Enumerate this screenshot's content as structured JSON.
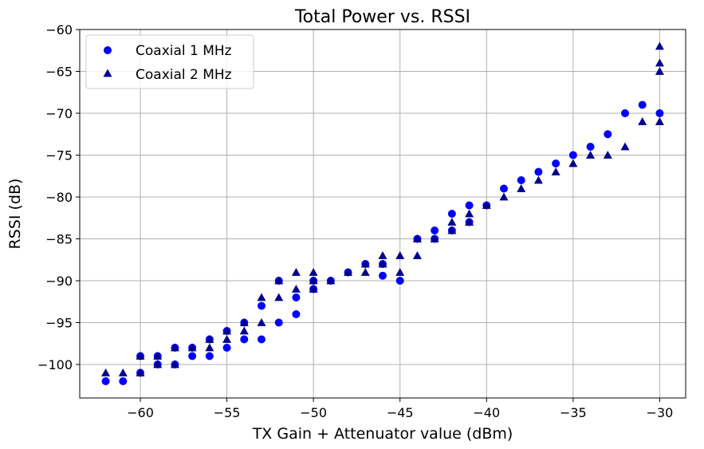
{
  "chart_data": {
    "type": "scatter",
    "title": "Total Power vs. RSSI",
    "xlabel": "TX Gain + Attenuator value (dBm)",
    "ylabel": "RSSI (dB)",
    "xlim": [
      -63.5,
      -28.5
    ],
    "ylim": [
      -104,
      -60
    ],
    "xticks": [
      -60,
      -55,
      -50,
      -45,
      -40,
      -35,
      -30
    ],
    "yticks": [
      -60,
      -65,
      -70,
      -75,
      -80,
      -85,
      -90,
      -95,
      -100
    ],
    "grid": true,
    "legend_position": "top-left",
    "series": [
      {
        "name": "Coaxial 1 MHz",
        "marker": "circle",
        "color": "#0000ff",
        "points": [
          [
            -62,
            -102
          ],
          [
            -61,
            -102
          ],
          [
            -60,
            -99
          ],
          [
            -60,
            -101
          ],
          [
            -59,
            -99
          ],
          [
            -59,
            -100
          ],
          [
            -58,
            -98
          ],
          [
            -58,
            -100
          ],
          [
            -57,
            -98
          ],
          [
            -57,
            -99
          ],
          [
            -56,
            -97
          ],
          [
            -56,
            -99
          ],
          [
            -55,
            -96
          ],
          [
            -55,
            -98
          ],
          [
            -54,
            -95
          ],
          [
            -54,
            -97
          ],
          [
            -53,
            -93
          ],
          [
            -53,
            -97
          ],
          [
            -52,
            -90
          ],
          [
            -52,
            -95
          ],
          [
            -51,
            -92
          ],
          [
            -51,
            -94
          ],
          [
            -50,
            -90
          ],
          [
            -50,
            -91
          ],
          [
            -49,
            -90
          ],
          [
            -48,
            -89
          ],
          [
            -47,
            -88
          ],
          [
            -46,
            -88
          ],
          [
            -46,
            -89.4
          ],
          [
            -45,
            -90
          ],
          [
            -44,
            -85
          ],
          [
            -43,
            -84
          ],
          [
            -43,
            -85
          ],
          [
            -42,
            -82
          ],
          [
            -42,
            -84
          ],
          [
            -41,
            -81
          ],
          [
            -41,
            -83
          ],
          [
            -40,
            -81
          ],
          [
            -39,
            -79
          ],
          [
            -38,
            -78
          ],
          [
            -37,
            -77
          ],
          [
            -36,
            -76
          ],
          [
            -35,
            -75
          ],
          [
            -34,
            -74
          ],
          [
            -33,
            -72.5
          ],
          [
            -32,
            -70
          ],
          [
            -31,
            -69
          ],
          [
            -30,
            -70
          ]
        ]
      },
      {
        "name": "Coaxial 2 MHz",
        "marker": "triangle",
        "color": "#00008b",
        "points": [
          [
            -62,
            -101
          ],
          [
            -61,
            -101
          ],
          [
            -60,
            -99
          ],
          [
            -60,
            -101
          ],
          [
            -59,
            -99
          ],
          [
            -59,
            -100
          ],
          [
            -58,
            -98
          ],
          [
            -58,
            -100
          ],
          [
            -57,
            -98
          ],
          [
            -56,
            -97
          ],
          [
            -56,
            -98
          ],
          [
            -55,
            -96
          ],
          [
            -55,
            -97
          ],
          [
            -54,
            -95
          ],
          [
            -54,
            -96
          ],
          [
            -53,
            -92
          ],
          [
            -53,
            -95
          ],
          [
            -52,
            -90
          ],
          [
            -52,
            -92
          ],
          [
            -51,
            -89
          ],
          [
            -51,
            -91
          ],
          [
            -50,
            -89
          ],
          [
            -50,
            -90
          ],
          [
            -50,
            -91
          ],
          [
            -49,
            -90
          ],
          [
            -48,
            -89
          ],
          [
            -47,
            -88
          ],
          [
            -47,
            -89
          ],
          [
            -46,
            -87
          ],
          [
            -46,
            -88
          ],
          [
            -45,
            -87
          ],
          [
            -45,
            -89
          ],
          [
            -44,
            -85
          ],
          [
            -44,
            -87
          ],
          [
            -43,
            -85
          ],
          [
            -42,
            -83
          ],
          [
            -42,
            -84
          ],
          [
            -41,
            -82
          ],
          [
            -41,
            -83
          ],
          [
            -40,
            -81
          ],
          [
            -39,
            -80
          ],
          [
            -38,
            -79
          ],
          [
            -37,
            -78
          ],
          [
            -36,
            -77
          ],
          [
            -35,
            -76
          ],
          [
            -34,
            -75
          ],
          [
            -33,
            -75
          ],
          [
            -32,
            -74
          ],
          [
            -31,
            -71
          ],
          [
            -30,
            -62
          ],
          [
            -30,
            -64
          ],
          [
            -30,
            -65
          ],
          [
            -30,
            -71
          ]
        ]
      }
    ]
  },
  "colors": {
    "grid": "#b0b0b0",
    "axis": "#000000"
  }
}
